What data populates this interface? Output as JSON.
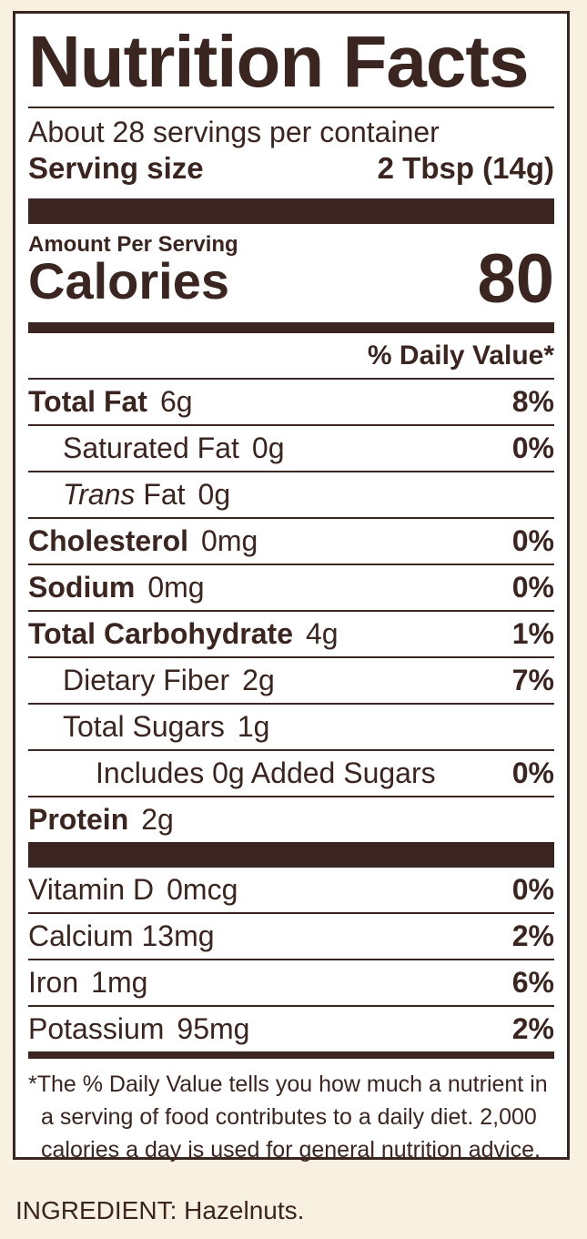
{
  "title": "Nutrition Facts",
  "servings": "About 28 servings per container",
  "serving_size": {
    "label": "Serving size",
    "value": "2 Tbsp (14g)"
  },
  "amount_per_serving": "Amount Per Serving",
  "calories": {
    "label": "Calories",
    "value": "80"
  },
  "daily_value_header": "% Daily Value*",
  "nutrients": [
    {
      "name": "Total Fat",
      "amount": "6g",
      "dv": "8%"
    },
    {
      "name": "Saturated Fat",
      "amount": "0g",
      "dv": "0%"
    },
    {
      "name_italic": "Trans",
      "name": "Fat",
      "amount": "0g",
      "dv": ""
    },
    {
      "name": "Cholesterol",
      "amount": "0mg",
      "dv": "0%"
    },
    {
      "name": "Sodium",
      "amount": "0mg",
      "dv": "0%"
    },
    {
      "name": "Total Carbohydrate",
      "amount": "4g",
      "dv": "1%"
    },
    {
      "name": "Dietary Fiber",
      "amount": "2g",
      "dv": "7%"
    },
    {
      "name": "Total Sugars",
      "amount": "1g",
      "dv": ""
    },
    {
      "name": "Includes 0g Added Sugars",
      "amount": "",
      "dv": "0%"
    },
    {
      "name": "Protein",
      "amount": "2g",
      "dv": ""
    }
  ],
  "vitamins": [
    {
      "name": "Vitamin D",
      "amount": "0mcg",
      "dv": "0%"
    },
    {
      "name": "Calcium",
      "amount": "13mg",
      "dv": "2%"
    },
    {
      "name": "Iron",
      "amount": "1mg",
      "dv": "6%"
    },
    {
      "name": "Potassium",
      "amount": "95mg",
      "dv": "2%"
    }
  ],
  "footnote": [
    "*The % Daily Value tells you how much a nutrient in",
    "a serving of food contributes to a daily diet. 2,000",
    "calories a day is used for general nutrition advice."
  ],
  "ingredients": "INGREDIENT: Hazelnuts."
}
